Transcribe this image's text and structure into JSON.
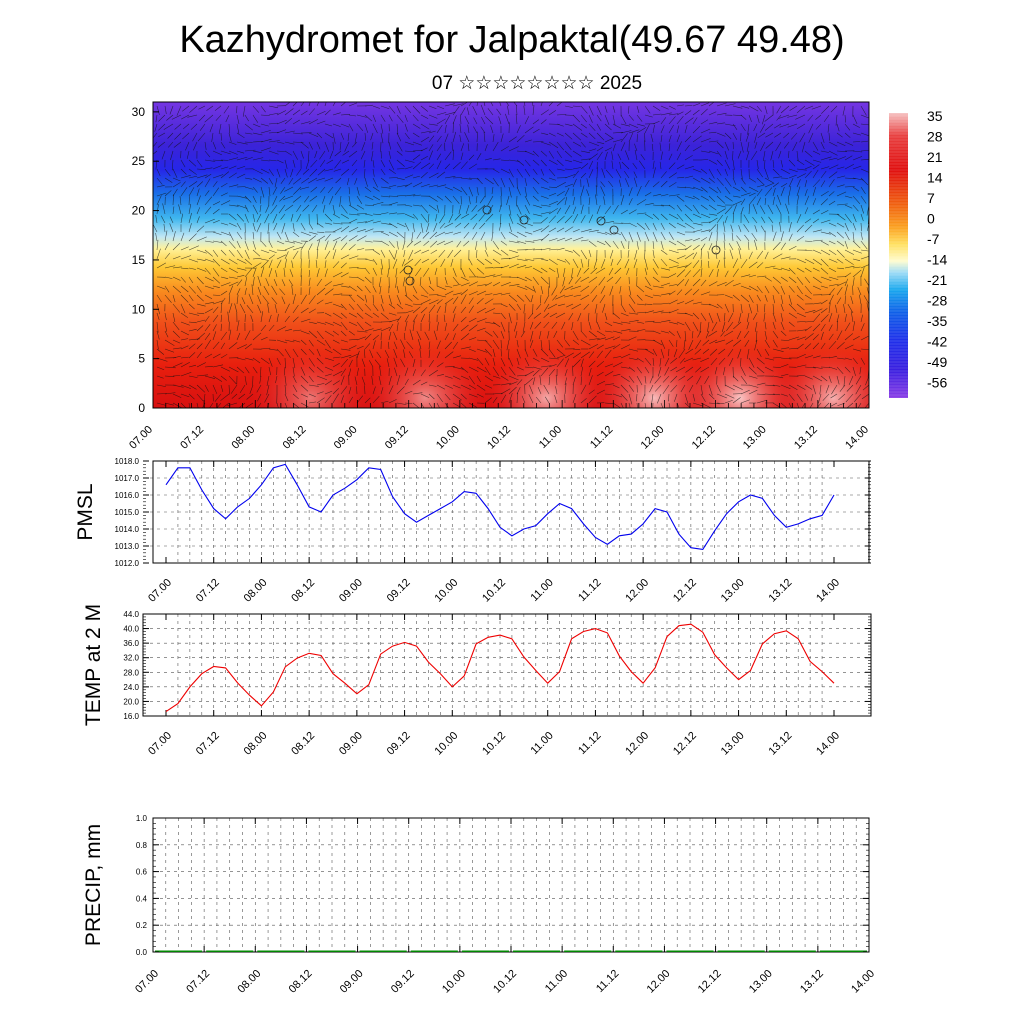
{
  "header": {
    "title": "Kazhydromet for Jalpaktal(49.67 49.48)",
    "subtitle": "07 ☆☆☆☆☆☆☆☆ 2025"
  },
  "chart_data": [
    {
      "id": "temperature-profile",
      "type": "heatmap",
      "title": "",
      "xlabel": "",
      "ylabel": "",
      "x_ticks": [
        "07.00",
        "07.12",
        "08.00",
        "08.12",
        "09.00",
        "09.12",
        "10.00",
        "10.12",
        "11.00",
        "11.12",
        "12.00",
        "12.12",
        "13.00",
        "13.12",
        "14.00"
      ],
      "y_ticks": [
        "0",
        "5",
        "10",
        "15",
        "20",
        "25",
        "30"
      ],
      "ylim": [
        0,
        31
      ],
      "colorbar": {
        "labels": [
          "35",
          "28",
          "21",
          "14",
          "7",
          "0",
          "-7",
          "-14",
          "-21",
          "-28",
          "-35",
          "-42",
          "-49",
          "-56"
        ],
        "range": [
          -60,
          38
        ]
      },
      "overlay": "wind vectors",
      "description_bands": [
        {
          "height": 0,
          "value": 30
        },
        {
          "height": 5,
          "value": 26
        },
        {
          "height": 10,
          "value": 12
        },
        {
          "height": 15,
          "value": -6
        },
        {
          "height": 20,
          "value": -30
        },
        {
          "height": 25,
          "value": -55
        },
        {
          "height": 31,
          "value": -45
        }
      ]
    },
    {
      "id": "pmsl",
      "type": "line",
      "ylabel": "PMSL",
      "color": "#0000ee",
      "ylim": [
        1012,
        1018
      ],
      "y_ticks": [
        "1012.0",
        "1013.0",
        "1014.0",
        "1015.0",
        "1016.0",
        "1017.0",
        "1018.0"
      ],
      "x_ticks": [
        "07.00",
        "07.12",
        "08.00",
        "08.12",
        "09.00",
        "09.12",
        "10.00",
        "10.12",
        "11.00",
        "11.12",
        "12.00",
        "12.12",
        "13.00",
        "13.12",
        "14.00"
      ],
      "x_step_hours": 3,
      "values": [
        1016.6,
        1017.6,
        1017.6,
        1016.3,
        1015.2,
        1014.6,
        1015.3,
        1015.8,
        1016.6,
        1017.6,
        1017.8,
        1016.6,
        1015.3,
        1015.0,
        1016.0,
        1016.4,
        1016.9,
        1017.6,
        1017.5,
        1015.9,
        1014.9,
        1014.4,
        1014.8,
        1015.2,
        1015.6,
        1016.2,
        1016.1,
        1015.2,
        1014.1,
        1013.6,
        1014.0,
        1014.2,
        1014.9,
        1015.5,
        1015.2,
        1014.3,
        1013.5,
        1013.1,
        1013.6,
        1013.7,
        1014.3,
        1015.2,
        1015.0,
        1013.7,
        1012.9,
        1012.8,
        1013.9,
        1014.9,
        1015.6,
        1016.0,
        1015.8,
        1014.8,
        1014.1,
        1014.3,
        1014.6,
        1014.8,
        1016.0
      ]
    },
    {
      "id": "temp2m",
      "type": "line",
      "ylabel": "TEMP at 2 M",
      "color": "#ee0000",
      "ylim": [
        16,
        44
      ],
      "y_ticks": [
        "16.0",
        "20.0",
        "24.0",
        "28.0",
        "32.0",
        "36.0",
        "40.0",
        "44.0"
      ],
      "x_ticks": [
        "07.00",
        "07.12",
        "08.00",
        "08.12",
        "09.00",
        "09.12",
        "10.00",
        "10.12",
        "11.00",
        "11.12",
        "12.00",
        "12.12",
        "13.00",
        "13.12",
        "14.00"
      ],
      "x_step_hours": 3,
      "values": [
        17.2,
        19.4,
        24.0,
        27.6,
        29.6,
        29.2,
        25.1,
        21.7,
        18.8,
        22.6,
        29.5,
        31.9,
        33.2,
        32.6,
        27.6,
        25.0,
        22.1,
        24.6,
        33.0,
        35.2,
        36.2,
        35.2,
        30.8,
        27.6,
        24.0,
        27.0,
        35.8,
        37.6,
        38.2,
        37.2,
        32.2,
        28.5,
        25.0,
        28.2,
        37.2,
        39.2,
        40.0,
        38.8,
        32.5,
        28.2,
        25.0,
        29.2,
        37.8,
        40.8,
        41.2,
        39.0,
        32.8,
        29.2,
        26.0,
        28.5,
        35.8,
        38.6,
        39.4,
        37.2,
        31.0,
        28.2,
        25.0
      ]
    },
    {
      "id": "precip",
      "type": "bar",
      "ylabel": "PRECIP, mm",
      "color": "#008800",
      "ylim": [
        0,
        1
      ],
      "y_ticks": [
        "0.0",
        "0.2",
        "0.4",
        "0.6",
        "0.8",
        "1.0"
      ],
      "x_ticks": [
        "07.00",
        "07.12",
        "08.00",
        "08.12",
        "09.00",
        "09.12",
        "10.00",
        "10.12",
        "11.00",
        "11.12",
        "12.00",
        "12.12",
        "13.00",
        "13.12",
        "14.00"
      ],
      "values": [
        0,
        0,
        0,
        0,
        0,
        0,
        0,
        0,
        0,
        0,
        0,
        0,
        0,
        0,
        0
      ]
    }
  ]
}
